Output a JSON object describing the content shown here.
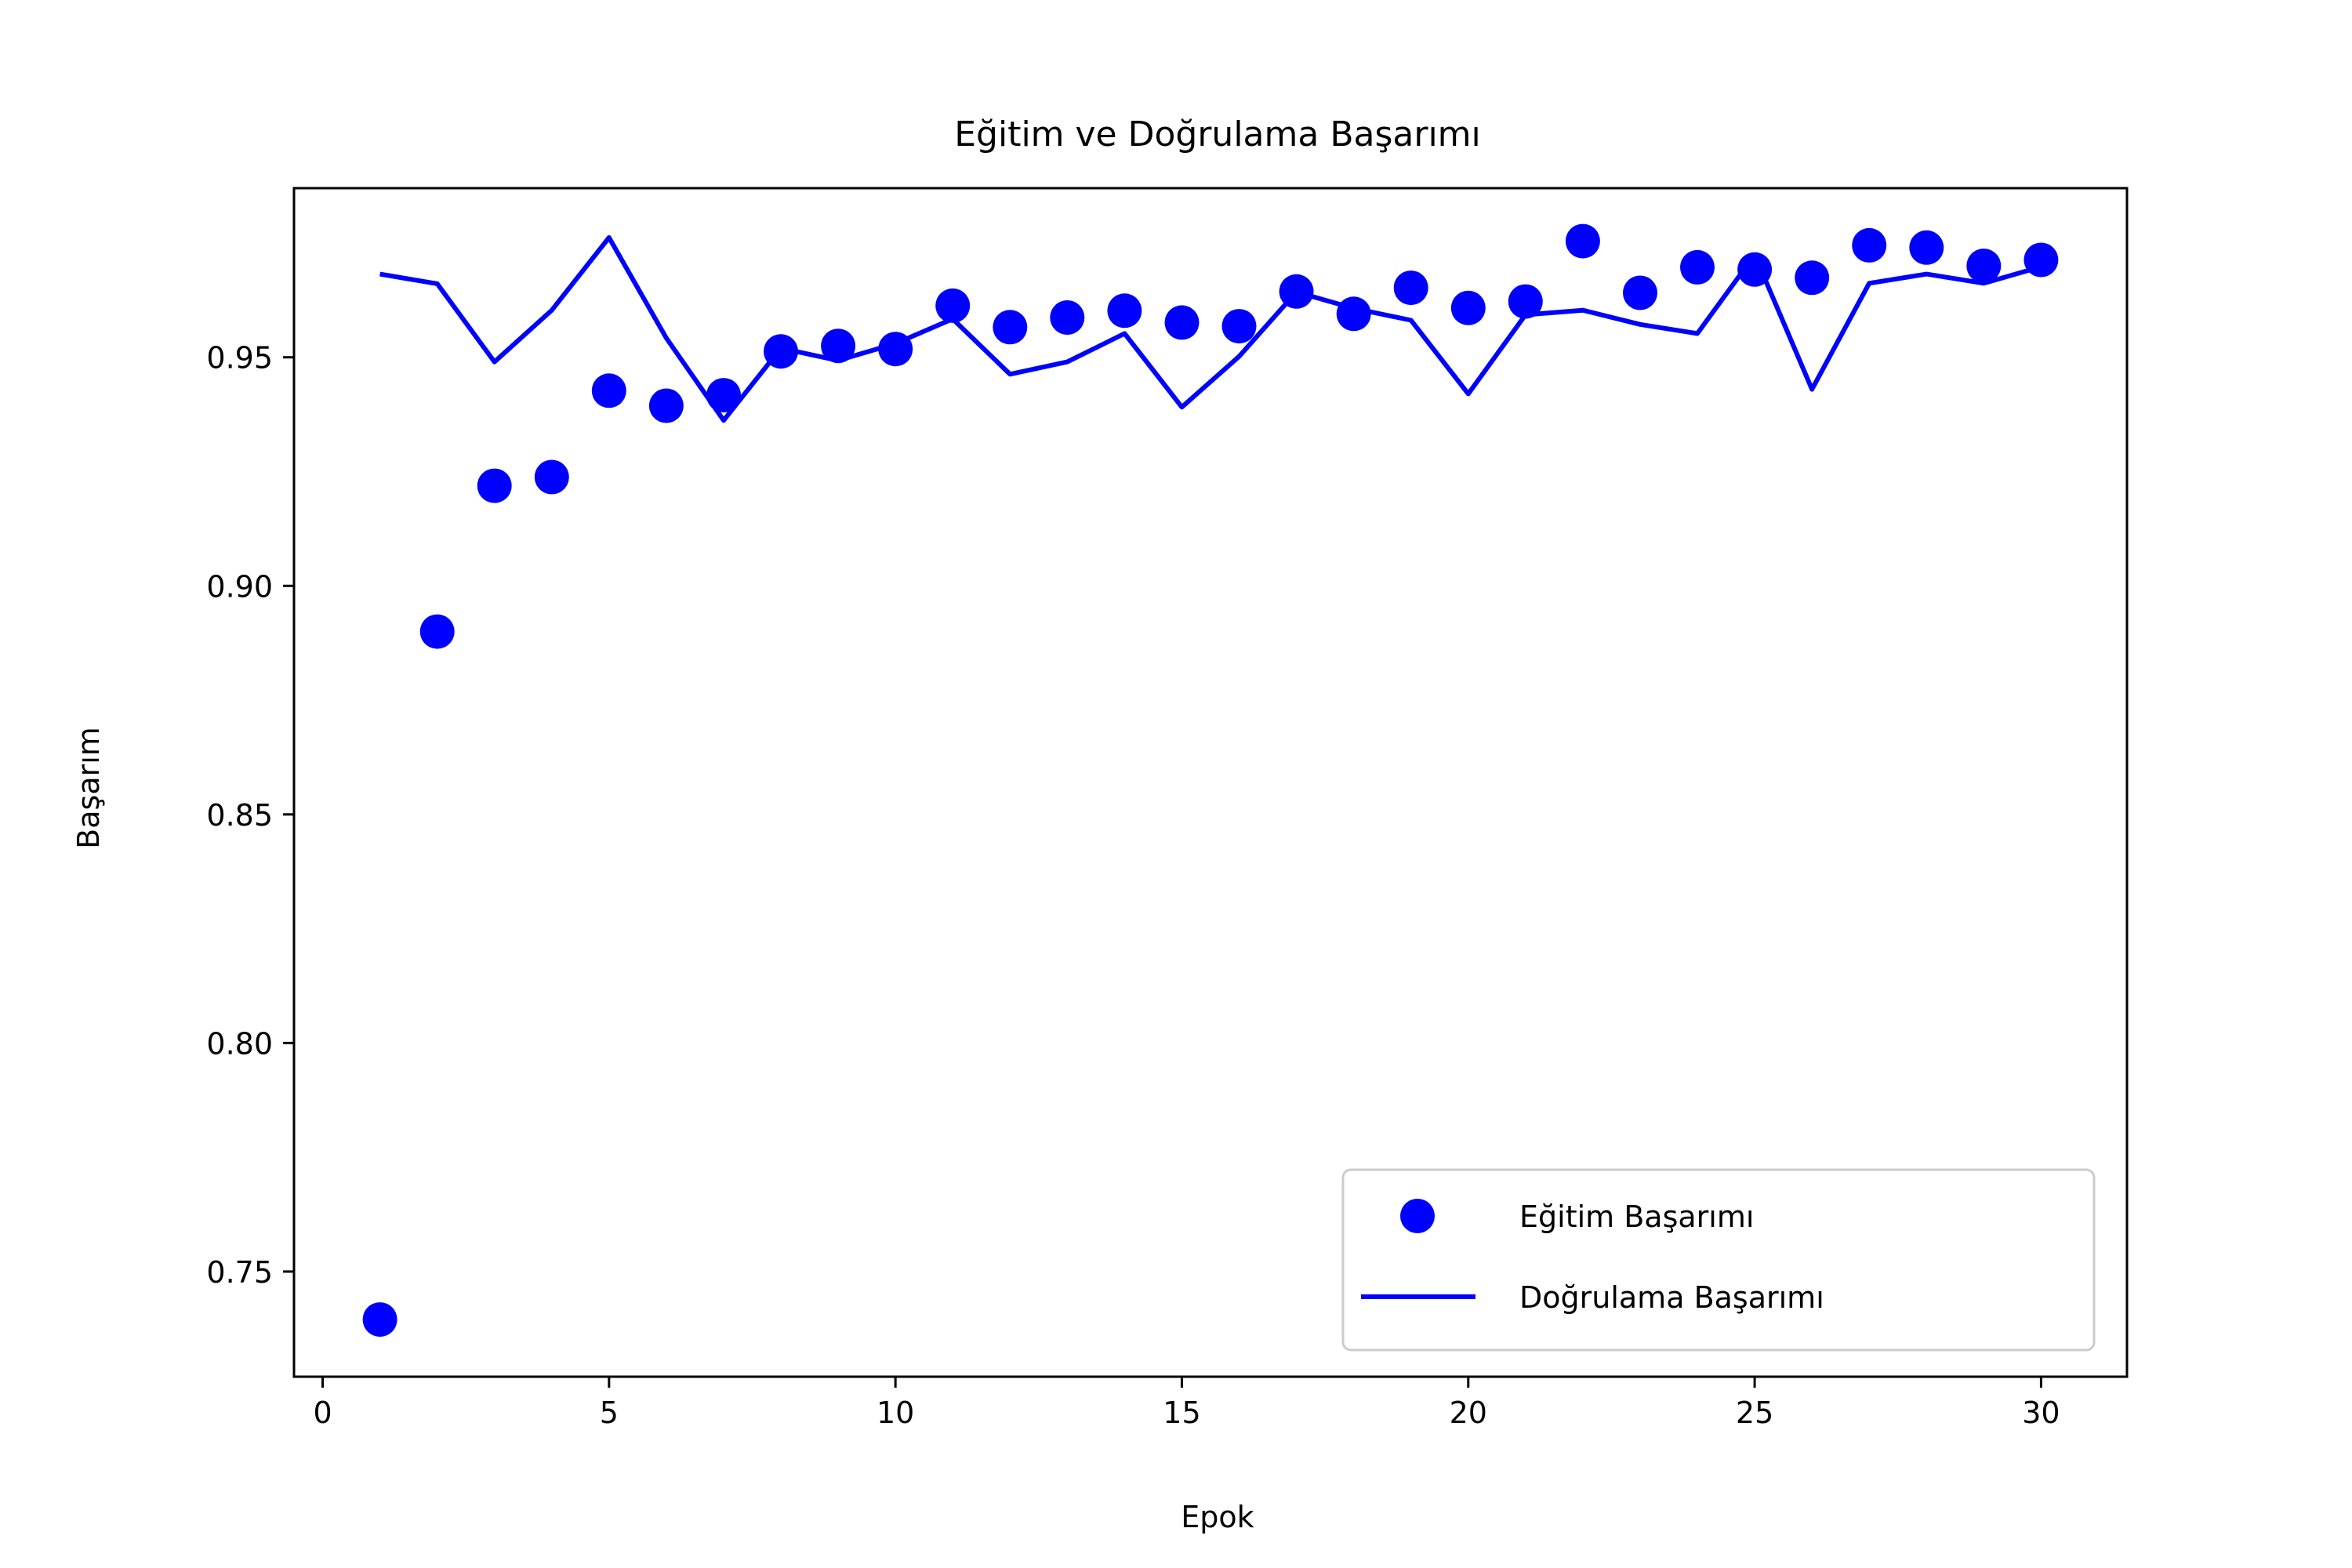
{
  "chart_data": {
    "type": "scatter",
    "title": "Eğitim ve Doğrulama Başarımı",
    "xlabel": "Epok",
    "ylabel": "Başarım",
    "xlim": [
      -0.5,
      31.5
    ],
    "ylim": [
      0.727,
      0.987
    ],
    "xticks": [
      0,
      5,
      10,
      15,
      20,
      25,
      30
    ],
    "yticks": [
      0.75,
      0.8,
      0.85,
      0.9,
      0.95
    ],
    "ytick_labels": [
      "0.75",
      "0.80",
      "0.85",
      "0.90",
      "0.95"
    ],
    "grid": false,
    "legend_position": "lower-right",
    "x": [
      1,
      2,
      3,
      4,
      5,
      6,
      7,
      8,
      9,
      10,
      11,
      12,
      13,
      14,
      15,
      16,
      17,
      18,
      19,
      20,
      21,
      22,
      23,
      24,
      25,
      26,
      27,
      28,
      29,
      30
    ],
    "series": [
      {
        "name": "Eğitim Başarımı",
        "style": "markers",
        "color": "#0000ff",
        "values": [
          0.7395,
          0.89,
          0.9219,
          0.9238,
          0.9427,
          0.9394,
          0.9417,
          0.9513,
          0.9525,
          0.9518,
          0.9613,
          0.9566,
          0.9587,
          0.9602,
          0.9576,
          0.9568,
          0.9644,
          0.9595,
          0.9652,
          0.9608,
          0.9622,
          0.9754,
          0.9641,
          0.9697,
          0.9692,
          0.9674,
          0.9745,
          0.974,
          0.97,
          0.9713
        ]
      },
      {
        "name": "Doğrulama Başarımı",
        "style": "line",
        "color": "#0000ff",
        "values": [
          0.9682,
          0.9661,
          0.949,
          0.9603,
          0.9762,
          0.9542,
          0.9362,
          0.952,
          0.9493,
          0.953,
          0.9584,
          0.9463,
          0.949,
          0.9552,
          0.9391,
          0.9502,
          0.9643,
          0.9607,
          0.9581,
          0.942,
          0.9593,
          0.9603,
          0.9572,
          0.9552,
          0.9724,
          0.943,
          0.9662,
          0.9682,
          0.9662,
          0.9698
        ]
      }
    ]
  }
}
